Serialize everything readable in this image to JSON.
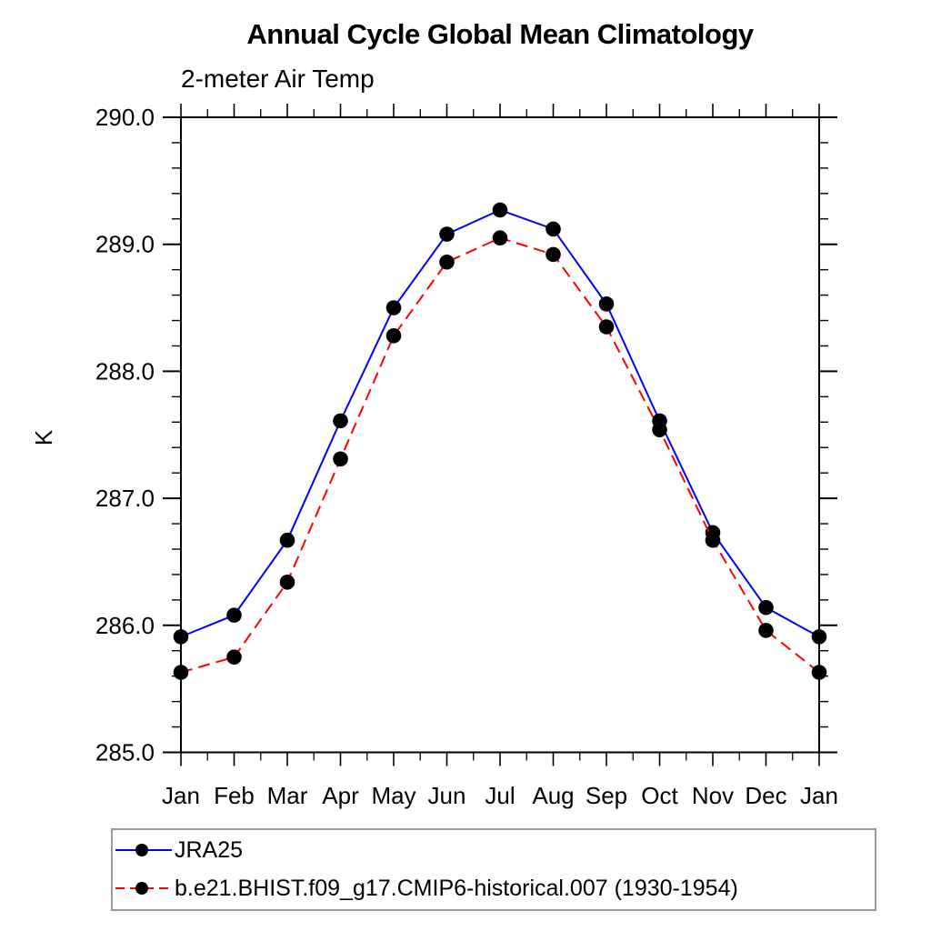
{
  "chart_data": {
    "type": "line",
    "title": "Annual Cycle Global Mean Climatology",
    "subtitle": "2-meter Air Temp",
    "ylabel": "K",
    "xlabel": "",
    "ylim": [
      285.0,
      290.0
    ],
    "ytick_major": 1.0,
    "ytick_minor": 0.2,
    "ytick_labels": [
      "285.0",
      "286.0",
      "287.0",
      "288.0",
      "289.0",
      "290.0"
    ],
    "grid": false,
    "legend_position": "bottom-left-box",
    "categories": [
      "Jan",
      "Feb",
      "Mar",
      "Apr",
      "May",
      "Jun",
      "Jul",
      "Aug",
      "Sep",
      "Oct",
      "Nov",
      "Dec",
      "Jan"
    ],
    "series": [
      {
        "name": "JRA25",
        "color": "#0000ff",
        "line_style": "solid",
        "marker": "circle",
        "marker_color": "#000000",
        "values": [
          285.91,
          286.08,
          286.67,
          287.61,
          288.5,
          289.08,
          289.27,
          289.12,
          288.53,
          287.61,
          286.73,
          286.14,
          285.91
        ]
      },
      {
        "name": "b.e21.BHIST.f09_g17.CMIP6-historical.007 (1930-1954)",
        "color": "#ff0000",
        "line_style": "dashed",
        "marker": "circle",
        "marker_color": "#000000",
        "values": [
          285.63,
          285.75,
          286.34,
          287.31,
          288.28,
          288.86,
          289.05,
          288.92,
          288.35,
          287.54,
          286.67,
          285.96,
          285.63
        ]
      }
    ]
  }
}
